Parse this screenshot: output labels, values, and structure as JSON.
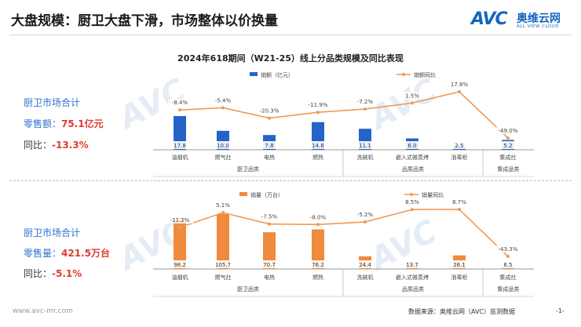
{
  "header": {
    "title": "大盘规模：厨卫大盘下滑，市场整体以价换量"
  },
  "logo": {
    "brand": "AVC",
    "name_cn": "奥维云网",
    "name_en": "ALL VIEW CLOUD"
  },
  "title": "2024年618期间（W21-25）线上分品类规模及同比表现",
  "summary_top": {
    "heading": "厨卫市场合计",
    "value_label": "零售额：",
    "value": "75.1亿元",
    "yoy_label": "同比：",
    "yoy": "-13.3%"
  },
  "summary_bottom": {
    "heading": "厨卫市场合计",
    "value_label": "零售量：",
    "value": "421.5万台",
    "yoy_label": "同比：",
    "yoy": "-5.1%"
  },
  "footer": {
    "url": "www.avc-mr.com",
    "source": "数据来源：奥维云网（AVC）监测数据",
    "page": "-1-"
  },
  "colors": {
    "blue": "#2563c9",
    "orange": "#f08a3c",
    "line": "#ee9a58",
    "red": "#e03a2f"
  },
  "chart_data": [
    {
      "type": "bar",
      "categories": [
        "油烟机",
        "燃气灶",
        "电热",
        "燃热",
        "洗碗机",
        "嵌入式微蒸烤",
        "消毒柜",
        "集成灶"
      ],
      "groups": [
        {
          "label": "厨卫品类",
          "range": [
            0,
            3
          ]
        },
        {
          "label": "品质品类",
          "range": [
            4,
            6
          ]
        },
        {
          "label": "集成品类",
          "range": [
            7,
            7
          ]
        }
      ],
      "series": [
        {
          "name": "销额（亿元）",
          "kind": "bar",
          "values": [
            17.8,
            10.0,
            7.8,
            14.6,
            11.1,
            6.0,
            2.5,
            5.2
          ]
        },
        {
          "name": "销额同比",
          "kind": "line",
          "values": [
            -8.4,
            -5.4,
            -20.3,
            -11.9,
            -7.2,
            1.5,
            17.8,
            -49.0
          ]
        }
      ],
      "value_labels": [
        "17.8",
        "10.0",
        "7.8",
        "14.6",
        "11.1",
        "6.0",
        "2.5",
        "5.2"
      ],
      "yoy_labels": [
        "-8.4%",
        "-5.4%",
        "-20.3%",
        "-11.9%",
        "-7.2%",
        "1.5%",
        "17.8%",
        "-49.0%"
      ],
      "legend_position": "top"
    },
    {
      "type": "bar",
      "categories": [
        "油烟机",
        "燃气灶",
        "电热",
        "燃热",
        "洗碗机",
        "嵌入式微蒸烤",
        "消毒柜",
        "集成灶"
      ],
      "groups": [
        {
          "label": "厨卫品类",
          "range": [
            0,
            3
          ]
        },
        {
          "label": "品质品类",
          "range": [
            4,
            6
          ]
        },
        {
          "label": "集成品类",
          "range": [
            7,
            7
          ]
        }
      ],
      "series": [
        {
          "name": "销量（万台）",
          "kind": "bar",
          "values": [
            98.2,
            105.7,
            70.7,
            76.2,
            24.4,
            13.7,
            26.1,
            6.5
          ]
        },
        {
          "name": "销量同比",
          "kind": "line",
          "values": [
            -11.2,
            5.1,
            -7.5,
            -8.0,
            -5.2,
            8.5,
            8.7,
            -43.3
          ]
        }
      ],
      "value_labels": [
        "98.2",
        "105.7",
        "70.7",
        "76.2",
        "24.4",
        "13.7",
        "26.1",
        "6.5"
      ],
      "yoy_labels": [
        "-11.2%",
        "5.1%",
        "-7.5%",
        "-8.0%",
        "-5.2%",
        "8.5%",
        "8.7%",
        "-43.3%"
      ],
      "legend_position": "top"
    }
  ]
}
